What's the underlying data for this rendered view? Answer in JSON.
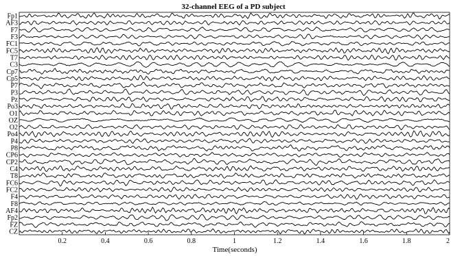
{
  "chart_data": {
    "type": "line",
    "title": "32-channel EEG of a PD subject",
    "xlabel": "Time(seconds)",
    "ylabel": "",
    "xlim": [
      0,
      2
    ],
    "x_ticks": [
      0.2,
      0.4,
      0.6,
      0.8,
      1,
      1.2,
      1.4,
      1.6,
      1.8,
      2
    ],
    "x_tick_labels": [
      "0.2",
      "0.4",
      "0.6",
      "0.8",
      "1",
      "1.2",
      "1.4",
      "1.6",
      "1.8",
      "2"
    ],
    "grid": false,
    "channels": [
      "Fp1",
      "AF3",
      "F7",
      "F3",
      "FC1",
      "FC5",
      "T7",
      "C3",
      "Cp7",
      "Cp5",
      "P7",
      "P3",
      "Pz",
      "Po3",
      "O1",
      "OZ",
      "O2",
      "Po4",
      "P4",
      "P8",
      "CP6",
      "CP2",
      "C4",
      "T8",
      "FC6",
      "FC2",
      "F4",
      "F8",
      "AF4",
      "Fp2",
      "FZ",
      "CZ"
    ]
  }
}
